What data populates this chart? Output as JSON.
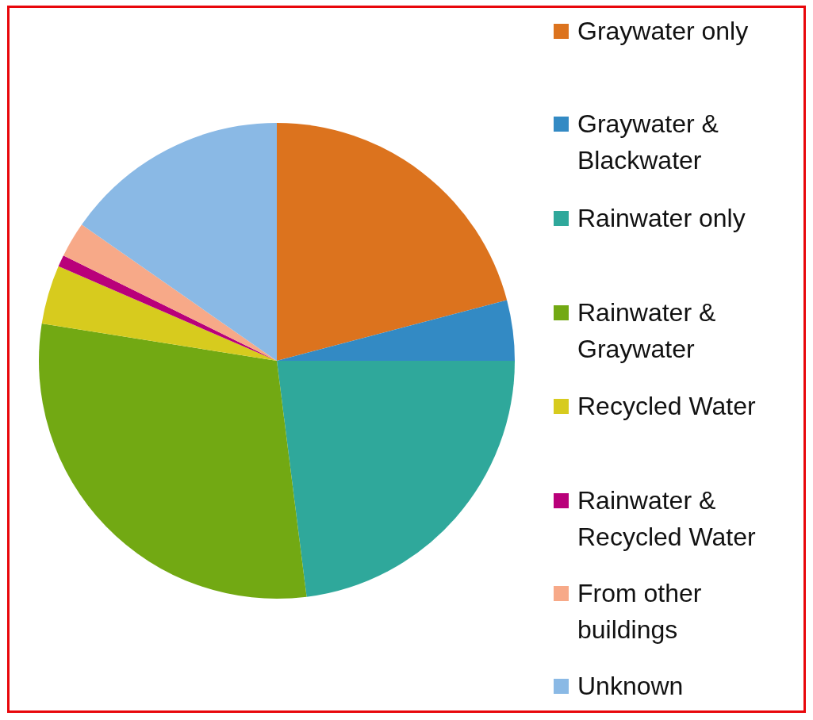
{
  "chart_data": {
    "type": "pie",
    "categories": [
      "Graywater only",
      "Graywater & Blackwater",
      "Rainwater only",
      "Rainwater & Graywater",
      "Recycled Water",
      "Rainwater & Recycled Water",
      "From other buildings",
      "Unknown"
    ],
    "values": [
      20.9,
      4.1,
      23.0,
      29.5,
      4.0,
      0.8,
      2.4,
      15.3
    ],
    "colors": [
      "#dc731e",
      "#338ac4",
      "#2fa89b",
      "#72a913",
      "#d7cb1e",
      "#b9007a",
      "#f7a988",
      "#8ab9e5"
    ],
    "legend": "right"
  }
}
